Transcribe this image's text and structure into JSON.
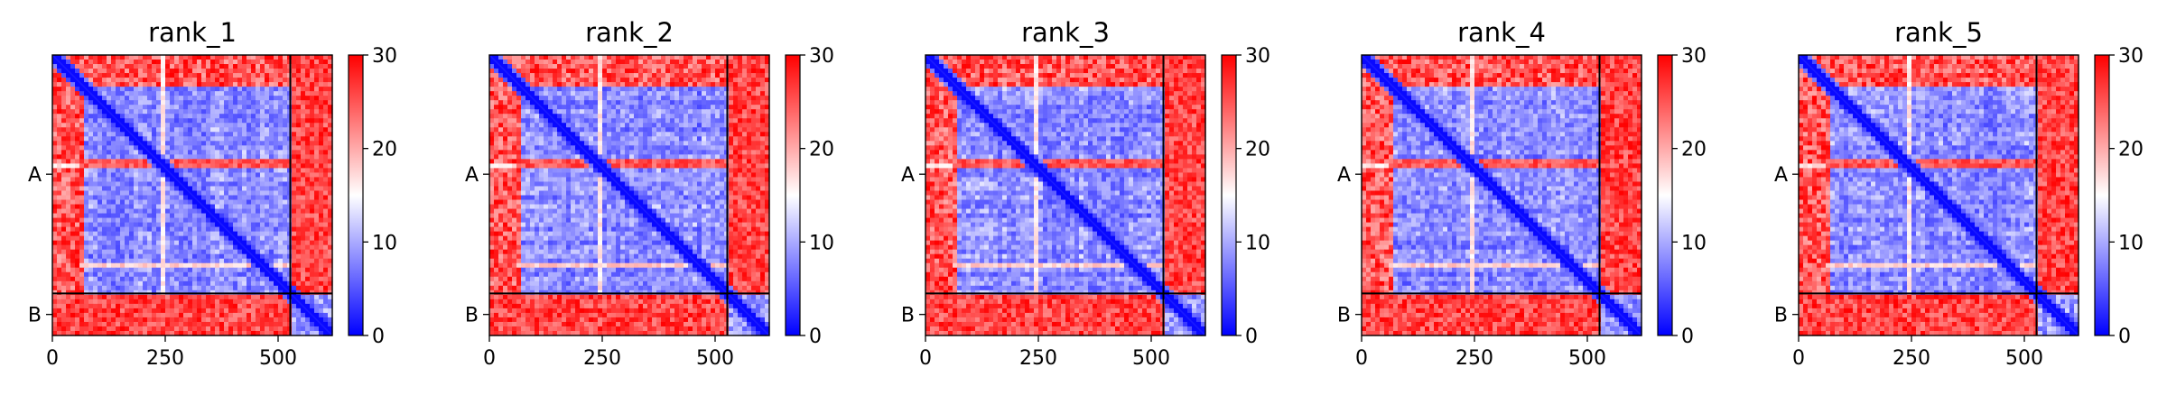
{
  "chart_data": {
    "type": "heatmap",
    "colormap": {
      "name": "bwr",
      "low": "#0000ff",
      "mid": "#ffffff",
      "high": "#ff0000"
    },
    "value_range": [
      0,
      30
    ],
    "colorbar_ticks": [
      0,
      10,
      20,
      30
    ],
    "x_range": [
      0,
      620
    ],
    "x_ticks": [
      0,
      250,
      500
    ],
    "chain_boundary": 527,
    "chains": [
      {
        "label": "A",
        "start": 0,
        "end": 527
      },
      {
        "label": "B",
        "start": 527,
        "end": 620
      }
    ],
    "panels": [
      {
        "title": "rank_1"
      },
      {
        "title": "rank_2"
      },
      {
        "title": "rank_3"
      },
      {
        "title": "rank_4"
      },
      {
        "title": "rank_5"
      }
    ]
  }
}
